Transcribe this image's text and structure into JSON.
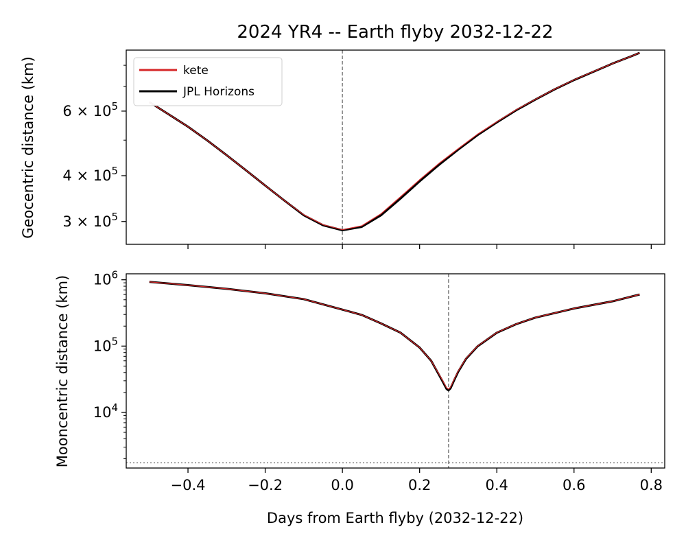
{
  "chart_data": {
    "type": "line",
    "title": "2024 YR4 -- Earth flyby 2032-12-22",
    "xlabel": "Days from Earth flyby (2032-12-22)",
    "xlim": [
      -0.56,
      0.835
    ],
    "x_ticks": [
      -0.4,
      -0.2,
      0.0,
      0.2,
      0.4,
      0.6,
      0.8
    ],
    "x_tick_labels": [
      "−0.4",
      "−0.2",
      "0.0",
      "0.2",
      "0.4",
      "0.6",
      "0.8"
    ],
    "legend": {
      "placement": "upper-left",
      "entries": [
        {
          "label": "kete",
          "color": "#d62728"
        },
        {
          "label": "JPL Horizons",
          "color": "#000000"
        }
      ]
    },
    "panels": [
      {
        "id": "geocentric",
        "ylabel": "Geocentric distance (km)",
        "yscale": "log",
        "ylim": [
          260000,
          880000
        ],
        "y_tick_labels": [
          {
            "value": 300000,
            "mantissa": "3",
            "exponent": "5"
          },
          {
            "value": 400000,
            "mantissa": "4",
            "exponent": "5"
          },
          {
            "value": 600000,
            "mantissa": "6",
            "exponent": "5"
          }
        ],
        "y_minor_ticks": [
          500000,
          700000,
          800000
        ],
        "vline_x": 0.0,
        "series": [
          {
            "name": "kete",
            "color": "#d62728",
            "x": [
              -0.5,
              -0.45,
              -0.4,
              -0.35,
              -0.3,
              -0.25,
              -0.2,
              -0.15,
              -0.1,
              -0.05,
              0.0,
              0.05,
              0.1,
              0.15,
              0.2,
              0.25,
              0.3,
              0.35,
              0.4,
              0.45,
              0.5,
              0.55,
              0.6,
              0.65,
              0.7,
              0.75,
              0.77
            ],
            "y": [
              635000,
              588000,
              544000,
              499000,
              455000,
              414000,
              376000,
              342000,
              313000,
              294000,
              285000,
              292000,
              315000,
              350000,
              390000,
              432000,
              474000,
              519000,
              561000,
              605000,
              646000,
              689000,
              730000,
              769000,
              809000,
              848000,
              865000
            ]
          },
          {
            "name": "JPL Horizons",
            "color": "#000000",
            "x": [
              -0.5,
              -0.45,
              -0.4,
              -0.35,
              -0.3,
              -0.25,
              -0.2,
              -0.15,
              -0.1,
              -0.05,
              0.0,
              0.05,
              0.1,
              0.15,
              0.2,
              0.25,
              0.3,
              0.35,
              0.4,
              0.45,
              0.5,
              0.55,
              0.6,
              0.65,
              0.7,
              0.75,
              0.77
            ],
            "y": [
              635000,
              588000,
              544000,
              499000,
              455000,
              414000,
              376000,
              342000,
              312000,
              293000,
              284000,
              290000,
              312000,
              346000,
              386000,
              428000,
              471000,
              516000,
              559000,
              603000,
              645000,
              688000,
              729000,
              768000,
              809000,
              848000,
              865000
            ]
          }
        ]
      },
      {
        "id": "mooncentric",
        "ylabel": "Mooncentric distance (km)",
        "yscale": "log",
        "ylim": [
          1450,
          1230000
        ],
        "y_tick_labels": [
          {
            "value": 10000,
            "mantissa": "10",
            "exponent": "4"
          },
          {
            "value": 100000,
            "mantissa": "10",
            "exponent": "5"
          },
          {
            "value": 1000000,
            "mantissa": "10",
            "exponent": "6"
          }
        ],
        "y_minor_powers": [
          3,
          4,
          5
        ],
        "vline_x": 0.275,
        "hline_y": 1737,
        "series": [
          {
            "name": "kete",
            "color": "#d62728",
            "x": [
              -0.5,
              -0.4,
              -0.3,
              -0.2,
              -0.1,
              0.0,
              0.05,
              0.1,
              0.15,
              0.2,
              0.23,
              0.25,
              0.26,
              0.27,
              0.275,
              0.28,
              0.29,
              0.3,
              0.32,
              0.35,
              0.4,
              0.45,
              0.5,
              0.6,
              0.7,
              0.77
            ],
            "y": [
              930000,
              830000,
              730000,
              625000,
              510000,
              355000,
              295000,
              220000,
              160000,
              95000,
              60000,
              38000,
              30000,
              23500,
              22500,
              24000,
              32000,
              42000,
              65000,
              100000,
              160000,
              215000,
              270000,
              370000,
              475000,
              600000
            ]
          },
          {
            "name": "JPL Horizons",
            "color": "#000000",
            "x": [
              -0.5,
              -0.4,
              -0.3,
              -0.2,
              -0.1,
              0.0,
              0.05,
              0.1,
              0.15,
              0.2,
              0.23,
              0.25,
              0.26,
              0.27,
              0.275,
              0.28,
              0.29,
              0.3,
              0.32,
              0.35,
              0.4,
              0.45,
              0.5,
              0.6,
              0.7,
              0.77
            ],
            "y": [
              930000,
              830000,
              730000,
              625000,
              510000,
              355000,
              295000,
              220000,
              160000,
              95000,
              60000,
              37000,
              29000,
              22500,
              21500,
              23000,
              31000,
              41000,
              64000,
              99000,
              159000,
              214000,
              269000,
              369000,
              474000,
              600000
            ]
          }
        ]
      }
    ]
  }
}
